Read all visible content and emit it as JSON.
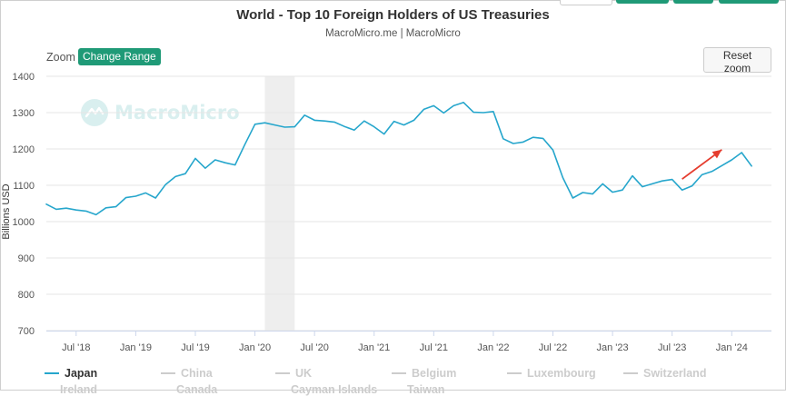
{
  "header": {
    "title": "World - Top 10 Foreign Holders of US Treasuries",
    "subtitle": "MacroMicro.me | MacroMicro"
  },
  "toolbar": {
    "zoom_label": "Zoom",
    "change_range_label": "Change Range",
    "reset_zoom_label": "Reset zoom"
  },
  "watermark": {
    "text": "MacroMicro"
  },
  "colors": {
    "series": "#26a6cc",
    "accent": "#1f9a77",
    "highlight_band": "#eeeeee",
    "arrow": "#e53c2e"
  },
  "legend": {
    "items": [
      {
        "label": "Japan",
        "active": true
      },
      {
        "label": "China",
        "active": false
      },
      {
        "label": "UK",
        "active": false
      },
      {
        "label": "Belgium",
        "active": false
      },
      {
        "label": "Luxembourg",
        "active": false
      },
      {
        "label": "Switzerland",
        "active": false
      }
    ],
    "partial_row": [
      "Ireland",
      "Canada",
      "Cayman Islands",
      "Taiwan"
    ]
  },
  "chart_data": {
    "type": "line",
    "title": "World - Top 10 Foreign Holders of US Treasuries",
    "ylabel": "Billions USD",
    "ylim": [
      700,
      1400
    ],
    "yticks": [
      700,
      800,
      900,
      1000,
      1100,
      1200,
      1300,
      1400
    ],
    "xlim": [
      "2018-04",
      "2024-05"
    ],
    "xticks": [
      {
        "date": "2018-07",
        "label": "Jul '18"
      },
      {
        "date": "2019-01",
        "label": "Jan '19"
      },
      {
        "date": "2019-07",
        "label": "Jul '19"
      },
      {
        "date": "2020-01",
        "label": "Jan '20"
      },
      {
        "date": "2020-07",
        "label": "Jul '20"
      },
      {
        "date": "2021-01",
        "label": "Jan '21"
      },
      {
        "date": "2021-07",
        "label": "Jul '21"
      },
      {
        "date": "2022-01",
        "label": "Jan '22"
      },
      {
        "date": "2022-07",
        "label": "Jul '22"
      },
      {
        "date": "2023-01",
        "label": "Jan '23"
      },
      {
        "date": "2023-07",
        "label": "Jul '23"
      },
      {
        "date": "2024-01",
        "label": "Jan '24"
      }
    ],
    "shaded_range": [
      "2020-02",
      "2020-05"
    ],
    "annotation": {
      "type": "arrow",
      "from": {
        "date": "2023-08",
        "value": 1117
      },
      "to": {
        "date": "2023-12",
        "value": 1198
      }
    },
    "series": [
      {
        "name": "Japan",
        "dates": [
          "2018-04",
          "2018-05",
          "2018-06",
          "2018-07",
          "2018-08",
          "2018-09",
          "2018-10",
          "2018-11",
          "2018-12",
          "2019-01",
          "2019-02",
          "2019-03",
          "2019-04",
          "2019-05",
          "2019-06",
          "2019-07",
          "2019-08",
          "2019-09",
          "2019-10",
          "2019-11",
          "2019-12",
          "2020-01",
          "2020-02",
          "2020-03",
          "2020-04",
          "2020-05",
          "2020-06",
          "2020-07",
          "2020-08",
          "2020-09",
          "2020-10",
          "2020-11",
          "2020-12",
          "2021-01",
          "2021-02",
          "2021-03",
          "2021-04",
          "2021-05",
          "2021-06",
          "2021-07",
          "2021-08",
          "2021-09",
          "2021-10",
          "2021-11",
          "2021-12",
          "2022-01",
          "2022-02",
          "2022-03",
          "2022-04",
          "2022-05",
          "2022-06",
          "2022-07",
          "2022-08",
          "2022-09",
          "2022-10",
          "2022-11",
          "2022-12",
          "2023-01",
          "2023-02",
          "2023-03",
          "2023-04",
          "2023-05",
          "2023-06",
          "2023-07",
          "2023-08",
          "2023-09",
          "2023-10",
          "2023-11",
          "2023-12",
          "2024-01",
          "2024-02",
          "2024-03"
        ],
        "values": [
          1048,
          1034,
          1037,
          1032,
          1029,
          1019,
          1038,
          1041,
          1066,
          1070,
          1079,
          1065,
          1102,
          1124,
          1132,
          1174,
          1147,
          1170,
          1162,
          1156,
          1213,
          1268,
          1272,
          1266,
          1260,
          1261,
          1293,
          1279,
          1277,
          1274,
          1262,
          1252,
          1277,
          1261,
          1241,
          1276,
          1266,
          1279,
          1309,
          1319,
          1299,
          1319,
          1328,
          1301,
          1300,
          1303,
          1228,
          1215,
          1219,
          1232,
          1229,
          1197,
          1121,
          1065,
          1080,
          1076,
          1104,
          1081,
          1087,
          1126,
          1096,
          1104,
          1112,
          1116,
          1087,
          1098,
          1129,
          1138,
          1154,
          1170,
          1190,
          1153
        ]
      }
    ]
  }
}
